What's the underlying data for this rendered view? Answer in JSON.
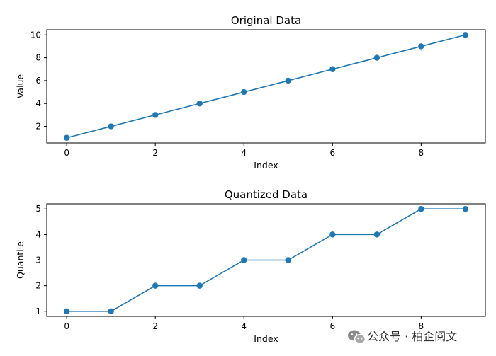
{
  "chart_data": [
    {
      "type": "line",
      "title": "Original Data",
      "xlabel": "Index",
      "ylabel": "Value",
      "x": [
        0,
        1,
        2,
        3,
        4,
        5,
        6,
        7,
        8,
        9
      ],
      "series": [
        {
          "values": [
            1,
            2,
            3,
            4,
            5,
            6,
            7,
            8,
            9,
            10
          ]
        }
      ],
      "xlim": [
        -0.45,
        9.45
      ],
      "ylim": [
        0.55,
        10.45
      ],
      "xticks": [
        0,
        2,
        4,
        6,
        8
      ],
      "yticks": [
        2,
        4,
        6,
        8,
        10
      ],
      "grid": false,
      "marker": "circle",
      "color": "#1f77b4"
    },
    {
      "type": "line",
      "title": "Quantized Data",
      "xlabel": "Index",
      "ylabel": "Quantile",
      "x": [
        0,
        1,
        2,
        3,
        4,
        5,
        6,
        7,
        8,
        9
      ],
      "series": [
        {
          "values": [
            1,
            1,
            2,
            2,
            3,
            3,
            4,
            4,
            5,
            5
          ]
        }
      ],
      "xlim": [
        -0.45,
        9.45
      ],
      "ylim": [
        0.8,
        5.2
      ],
      "xticks": [
        0,
        2,
        4,
        6,
        8
      ],
      "yticks": [
        1,
        2,
        3,
        4,
        5
      ],
      "grid": false,
      "marker": "circle",
      "color": "#1f77b4"
    }
  ],
  "watermark": {
    "text": "公众号 · 柏企阅文",
    "icon": "wechat-icon"
  }
}
